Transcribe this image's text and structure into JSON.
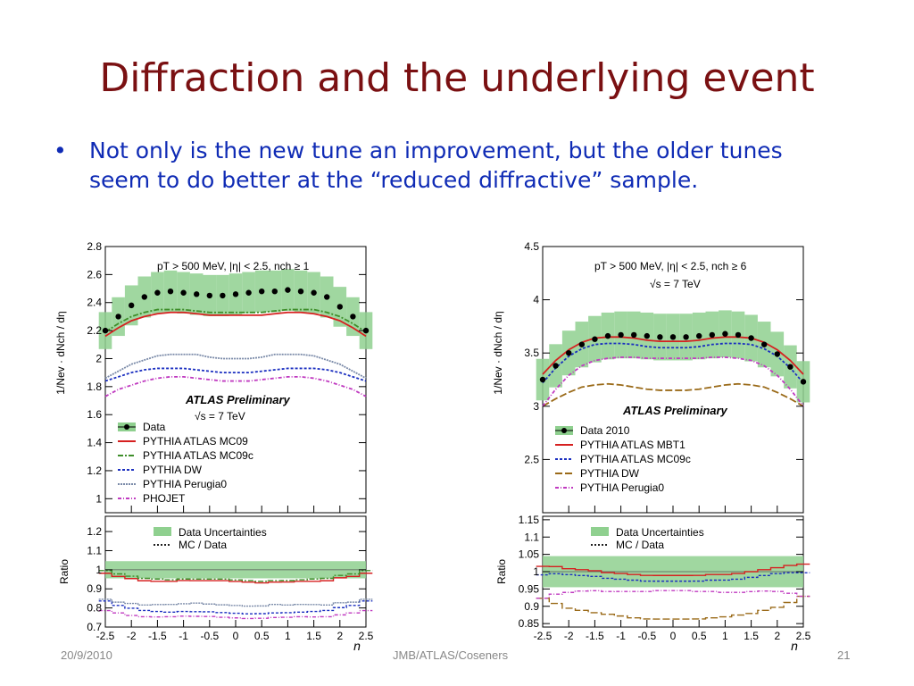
{
  "slide": {
    "title": "Diffraction and the underlying event",
    "bullet": "Not only is the new tune an improvement, but the older tunes seem to do better at the “reduced diffractive” sample.",
    "footer_left": "20/9/2010",
    "footer_center": "JMB/ATLAS/Coseners",
    "footer_right": "21"
  },
  "colors": {
    "title": "#7a1012",
    "bullet": "#0f2bb5",
    "band": "#8fd08f",
    "red": "#d62020",
    "green": "#3e8e2a",
    "blue": "#1b2fc0",
    "grey": "#7a8aa8",
    "magenta": "#c03ac0",
    "brown": "#9a6a18"
  },
  "chart_data": [
    {
      "type": "line",
      "main": {
        "ylabel": "1/Nev · dNch / dη",
        "ylim": [
          0.9,
          2.8
        ],
        "yticks": [
          "2.8",
          "2.6",
          "2.4",
          "2.2",
          "2",
          "1.8",
          "1.6",
          "1.4",
          "1.2",
          "1"
        ],
        "annotation": "pT > 500 MeV, |η| < 2.5, nch ≥ 1",
        "preliminary": "ATLAS Preliminary",
        "energy": "√s = 7 TeV"
      },
      "x": [
        -2.5,
        -2.25,
        -2,
        -1.75,
        -1.5,
        -1.25,
        -1,
        -0.75,
        -0.5,
        -0.25,
        0,
        0.25,
        0.5,
        0.75,
        1,
        1.25,
        1.5,
        1.75,
        2,
        2.25,
        2.5
      ],
      "xticks": [
        "-2.5",
        "-2",
        "-1.5",
        "-1",
        "-0.5",
        "0",
        "0.5",
        "1",
        "1.5",
        "2",
        "2.5"
      ],
      "xlabel": "η",
      "data": [
        2.2,
        2.3,
        2.38,
        2.44,
        2.47,
        2.48,
        2.47,
        2.46,
        2.45,
        2.45,
        2.46,
        2.47,
        2.48,
        2.48,
        2.49,
        2.48,
        2.47,
        2.44,
        2.37,
        2.3,
        2.2
      ],
      "series": [
        {
          "name": "PYTHIA ATLAS MC09",
          "color_key": "red",
          "dash": "",
          "values": [
            2.16,
            2.22,
            2.27,
            2.3,
            2.32,
            2.33,
            2.33,
            2.32,
            2.31,
            2.31,
            2.31,
            2.31,
            2.31,
            2.32,
            2.33,
            2.33,
            2.32,
            2.3,
            2.27,
            2.22,
            2.16
          ]
        },
        {
          "name": "PYTHIA ATLAS MC09c",
          "color_key": "green",
          "dash": "6,2,2,2",
          "values": [
            2.19,
            2.25,
            2.3,
            2.33,
            2.35,
            2.35,
            2.35,
            2.34,
            2.33,
            2.33,
            2.33,
            2.33,
            2.33,
            2.34,
            2.35,
            2.35,
            2.35,
            2.33,
            2.3,
            2.25,
            2.19
          ]
        },
        {
          "name": "PYTHIA DW",
          "color_key": "blue",
          "dash": "3,2",
          "values": [
            1.84,
            1.87,
            1.9,
            1.92,
            1.93,
            1.93,
            1.93,
            1.92,
            1.91,
            1.9,
            1.9,
            1.9,
            1.91,
            1.92,
            1.93,
            1.93,
            1.93,
            1.92,
            1.9,
            1.87,
            1.84
          ]
        },
        {
          "name": "PYTHIA Perugia0",
          "color_key": "grey",
          "dash": "2,1",
          "values": [
            1.86,
            1.91,
            1.96,
            1.99,
            2.02,
            2.03,
            2.03,
            2.03,
            2.01,
            2.0,
            2.0,
            2.0,
            2.01,
            2.03,
            2.03,
            2.03,
            2.02,
            1.99,
            1.96,
            1.91,
            1.86
          ]
        },
        {
          "name": "PHOJET",
          "color_key": "magenta",
          "dash": "4,2,1,2",
          "values": [
            1.73,
            1.78,
            1.81,
            1.84,
            1.86,
            1.87,
            1.87,
            1.86,
            1.85,
            1.84,
            1.84,
            1.84,
            1.85,
            1.86,
            1.87,
            1.87,
            1.86,
            1.84,
            1.81,
            1.78,
            1.73
          ]
        }
      ],
      "legend": [
        "Data",
        "PYTHIA ATLAS MC09",
        "PYTHIA ATLAS MC09c",
        "PYTHIA DW",
        "PYTHIA Perugia0",
        "PHOJET"
      ],
      "ratio": {
        "ylabel": "Ratio",
        "ylim": [
          0.7,
          1.28
        ],
        "yticks": [
          "1.2",
          "1.1",
          "1",
          "0.9",
          "0.8",
          "0.7"
        ],
        "band": 0.045,
        "legend": [
          "Data Uncertainties",
          "MC / Data"
        ]
      }
    },
    {
      "type": "line",
      "main": {
        "ylabel": "1/Nev · dNch / dη",
        "ylim": [
          2.0,
          4.5
        ],
        "yticks": [
          "4.5",
          "4",
          "3.5",
          "3",
          "2.5"
        ],
        "annotation": "pT > 500 MeV, |η| < 2.5, nch ≥ 6",
        "preliminary": "ATLAS Preliminary",
        "energy": "√s = 7 TeV"
      },
      "x": [
        -2.5,
        -2.25,
        -2,
        -1.75,
        -1.5,
        -1.25,
        -1,
        -0.75,
        -0.5,
        -0.25,
        0,
        0.25,
        0.5,
        0.75,
        1,
        1.25,
        1.5,
        1.75,
        2,
        2.25,
        2.5
      ],
      "xticks": [
        "-2.5",
        "-2",
        "-1.5",
        "-1",
        "-0.5",
        "0",
        "0.5",
        "1",
        "1.5",
        "2",
        "2.5"
      ],
      "xlabel": "η",
      "data": [
        3.25,
        3.38,
        3.5,
        3.58,
        3.63,
        3.66,
        3.67,
        3.67,
        3.66,
        3.65,
        3.65,
        3.65,
        3.66,
        3.67,
        3.68,
        3.67,
        3.64,
        3.58,
        3.49,
        3.37,
        3.23
      ],
      "series": [
        {
          "name": "PYTHIA ATLAS MBT1",
          "color_key": "red",
          "dash": "",
          "values": [
            3.3,
            3.43,
            3.53,
            3.6,
            3.64,
            3.65,
            3.65,
            3.64,
            3.62,
            3.61,
            3.61,
            3.61,
            3.62,
            3.64,
            3.65,
            3.65,
            3.64,
            3.6,
            3.53,
            3.43,
            3.3
          ]
        },
        {
          "name": "PYTHIA ATLAS MC09c",
          "color_key": "blue",
          "dash": "3,2",
          "values": [
            3.22,
            3.36,
            3.47,
            3.54,
            3.58,
            3.59,
            3.59,
            3.58,
            3.56,
            3.55,
            3.55,
            3.55,
            3.56,
            3.58,
            3.59,
            3.59,
            3.58,
            3.54,
            3.47,
            3.36,
            3.22
          ]
        },
        {
          "name": "PYTHIA DW",
          "color_key": "brown",
          "dash": "8,3",
          "values": [
            3.0,
            3.07,
            3.13,
            3.18,
            3.2,
            3.21,
            3.2,
            3.18,
            3.16,
            3.15,
            3.15,
            3.15,
            3.16,
            3.18,
            3.2,
            3.21,
            3.2,
            3.18,
            3.13,
            3.07,
            3.0
          ]
        },
        {
          "name": "PYTHIA Perugia0",
          "color_key": "magenta",
          "dash": "4,2,1,2",
          "values": [
            3.0,
            3.16,
            3.29,
            3.38,
            3.43,
            3.45,
            3.46,
            3.46,
            3.45,
            3.45,
            3.45,
            3.45,
            3.45,
            3.46,
            3.46,
            3.45,
            3.43,
            3.38,
            3.29,
            3.16,
            3.0
          ]
        }
      ],
      "legend": [
        "Data 2010",
        "PYTHIA ATLAS MBT1",
        "PYTHIA ATLAS MC09c",
        "PYTHIA DW",
        "PYTHIA Perugia0"
      ],
      "ratio": {
        "ylabel": "Ratio",
        "ylim": [
          0.84,
          1.16
        ],
        "yticks": [
          "1.15",
          "1.1",
          "1.05",
          "1",
          "0.95",
          "0.9",
          "0.85"
        ],
        "band": 0.045,
        "legend": [
          "Data Uncertainties",
          "MC / Data"
        ]
      }
    }
  ]
}
